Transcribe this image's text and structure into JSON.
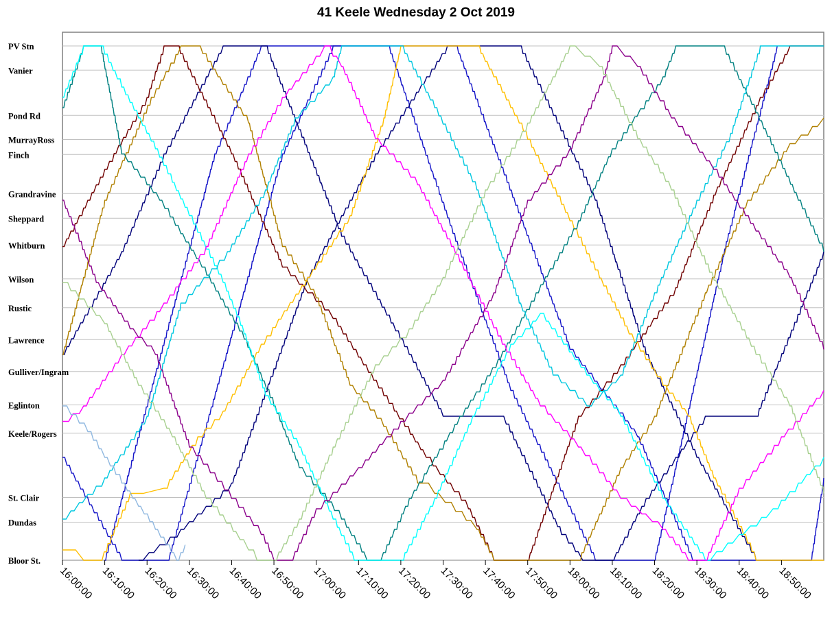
{
  "chart_data": {
    "type": "line",
    "title": "41 Keele Wednesday 2 Oct 2019",
    "x_ticks": [
      "16:00:00",
      "16:10:00",
      "16:20:00",
      "16:30:00",
      "16:40:00",
      "16:50:00",
      "17:00:00",
      "17:10:00",
      "17:20:00",
      "17:30:00",
      "17:40:00",
      "17:50:00",
      "18:00:00",
      "18:10:00",
      "18:20:00",
      "18:30:00",
      "18:40:00",
      "18:50:00"
    ],
    "xlim": [
      "16:00:00",
      "19:00:00"
    ],
    "stops": [
      {
        "name": "PV Stn",
        "pos": 1.0
      },
      {
        "name": "Vanier",
        "pos": 0.953
      },
      {
        "name": "Pond Rd",
        "pos": 0.865
      },
      {
        "name": "MurrayRoss",
        "pos": 0.818
      },
      {
        "name": "Finch",
        "pos": 0.789
      },
      {
        "name": "Grandravine",
        "pos": 0.713
      },
      {
        "name": "Sheppard",
        "pos": 0.665
      },
      {
        "name": "Whitburn",
        "pos": 0.613
      },
      {
        "name": "Wilson",
        "pos": 0.547
      },
      {
        "name": "Rustic",
        "pos": 0.491
      },
      {
        "name": "Lawrence",
        "pos": 0.429
      },
      {
        "name": "Gulliver/Ingram",
        "pos": 0.367
      },
      {
        "name": "Eglinton",
        "pos": 0.302
      },
      {
        "name": "Keele/Rogers",
        "pos": 0.247
      },
      {
        "name": "St. Clair",
        "pos": 0.122
      },
      {
        "name": "Dundas",
        "pos": 0.074
      },
      {
        "name": "Bloor St.",
        "pos": 0.0
      }
    ],
    "grid": true,
    "legend": "none",
    "series": [
      {
        "color": "#1414C8",
        "points": [
          [
            "16:00",
            0.2
          ],
          [
            "16:14",
            0.0
          ],
          [
            "16:25",
            0.0
          ],
          [
            "16:52",
            0.79
          ],
          [
            "17:04",
            1.0
          ],
          [
            "17:33",
            1.0
          ],
          [
            "18:00",
            0.41
          ],
          [
            "18:16",
            0.24
          ],
          [
            "18:29",
            0.0
          ],
          [
            "18:57",
            0.0
          ],
          [
            "19:00",
            0.16
          ]
        ]
      },
      {
        "color": "#1414C8",
        "points": [
          [
            "16:10",
            0.0
          ],
          [
            "16:36",
            0.79
          ],
          [
            "16:47",
            1.0
          ],
          [
            "17:17",
            1.0
          ],
          [
            "17:33",
            0.62
          ],
          [
            "17:46",
            0.33
          ],
          [
            "18:06",
            0.0
          ],
          [
            "18:20",
            0.0
          ],
          [
            "18:37",
            0.62
          ],
          [
            "18:49",
            1.0
          ]
        ]
      },
      {
        "color": "#00007A",
        "points": [
          [
            "16:00",
            0.4
          ],
          [
            "16:14",
            0.6
          ],
          [
            "16:24",
            0.79
          ],
          [
            "16:38",
            1.0
          ],
          [
            "16:48",
            1.0
          ],
          [
            "17:06",
            0.63
          ],
          [
            "17:22",
            0.4
          ],
          [
            "17:30",
            0.28
          ],
          [
            "17:44",
            0.28
          ],
          [
            "17:58",
            0.05
          ],
          [
            "18:03",
            0.0
          ],
          [
            "18:10",
            0.0
          ],
          [
            "18:18",
            0.12
          ],
          [
            "18:32",
            0.28
          ],
          [
            "18:44",
            0.28
          ],
          [
            "19:00",
            0.6
          ]
        ]
      },
      {
        "color": "#00007A",
        "points": [
          [
            "16:18",
            0.0
          ],
          [
            "16:28",
            0.06
          ],
          [
            "16:40",
            0.15
          ],
          [
            "16:58",
            0.55
          ],
          [
            "17:14",
            0.79
          ],
          [
            "17:31",
            1.0
          ],
          [
            "17:48",
            1.0
          ],
          [
            "18:06",
            0.7
          ],
          [
            "18:18",
            0.4
          ],
          [
            "18:30",
            0.2
          ],
          [
            "18:44",
            0.0
          ]
        ]
      },
      {
        "color": "#700000",
        "points": [
          [
            "16:00",
            0.61
          ],
          [
            "16:10",
            0.76
          ],
          [
            "16:20",
            0.9
          ],
          [
            "16:24",
            1.0
          ],
          [
            "16:27",
            1.0
          ],
          [
            "16:40",
            0.79
          ],
          [
            "16:52",
            0.57
          ],
          [
            "17:04",
            0.47
          ],
          [
            "17:16",
            0.32
          ],
          [
            "17:26",
            0.2
          ],
          [
            "17:36",
            0.1
          ],
          [
            "17:42",
            0.0
          ],
          [
            "17:50",
            0.0
          ],
          [
            "18:02",
            0.28
          ],
          [
            "18:12",
            0.38
          ],
          [
            "18:25",
            0.53
          ],
          [
            "18:34",
            0.71
          ],
          [
            "18:45",
            0.9
          ],
          [
            "18:52",
            1.0
          ],
          [
            "19:00",
            1.0
          ]
        ]
      },
      {
        "color": "#B08000",
        "points": [
          [
            "16:00",
            0.4
          ],
          [
            "16:10",
            0.7
          ],
          [
            "16:21",
            0.9
          ],
          [
            "16:28",
            1.0
          ],
          [
            "16:32",
            1.0
          ],
          [
            "16:44",
            0.85
          ],
          [
            "16:52",
            0.61
          ],
          [
            "17:00",
            0.51
          ],
          [
            "17:08",
            0.34
          ],
          [
            "17:16",
            0.26
          ],
          [
            "17:24",
            0.15
          ],
          [
            "17:28",
            0.13
          ],
          [
            "17:38",
            0.06
          ],
          [
            "17:42",
            0.0
          ],
          [
            "18:02",
            0.0
          ],
          [
            "18:12",
            0.18
          ],
          [
            "18:20",
            0.28
          ],
          [
            "18:32",
            0.52
          ],
          [
            "18:42",
            0.7
          ],
          [
            "18:52",
            0.81
          ],
          [
            "19:00",
            0.86
          ]
        ]
      },
      {
        "color": "#FFBF00",
        "points": [
          [
            "16:00",
            0.02
          ],
          [
            "16:05",
            0.0
          ],
          [
            "16:09",
            0.0
          ],
          [
            "16:16",
            0.13
          ],
          [
            "16:24",
            0.14
          ],
          [
            "16:32",
            0.24
          ],
          [
            "16:38",
            0.29
          ],
          [
            "16:47",
            0.42
          ],
          [
            "16:58",
            0.55
          ],
          [
            "17:08",
            0.67
          ],
          [
            "17:16",
            0.86
          ],
          [
            "17:20",
            1.0
          ],
          [
            "17:38",
            1.0
          ],
          [
            "17:48",
            0.85
          ],
          [
            "17:55",
            0.74
          ],
          [
            "18:05",
            0.58
          ],
          [
            "18:14",
            0.44
          ],
          [
            "18:22",
            0.34
          ],
          [
            "18:28",
            0.28
          ],
          [
            "18:34",
            0.16
          ],
          [
            "18:41",
            0.05
          ],
          [
            "18:44",
            0.0
          ],
          [
            "19:00",
            0.0
          ]
        ]
      },
      {
        "color": "#008080",
        "points": [
          [
            "16:00",
            0.88
          ],
          [
            "16:05",
            1.0
          ],
          [
            "16:09",
            1.0
          ],
          [
            "16:14",
            0.79
          ],
          [
            "16:23",
            0.7
          ],
          [
            "16:33",
            0.57
          ],
          [
            "16:43",
            0.43
          ],
          [
            "16:50",
            0.3
          ],
          [
            "16:56",
            0.18
          ],
          [
            "17:06",
            0.08
          ],
          [
            "17:12",
            0.0
          ],
          [
            "17:15",
            0.0
          ],
          [
            "17:22",
            0.12
          ],
          [
            "17:34",
            0.28
          ],
          [
            "17:43",
            0.39
          ],
          [
            "17:52",
            0.52
          ],
          [
            "18:02",
            0.66
          ],
          [
            "18:10",
            0.8
          ],
          [
            "18:22",
            0.94
          ],
          [
            "18:25",
            1.0
          ],
          [
            "18:36",
            1.0
          ],
          [
            "18:44",
            0.87
          ],
          [
            "18:54",
            0.7
          ],
          [
            "19:00",
            0.6
          ]
        ]
      },
      {
        "color": "#00FFFF",
        "points": [
          [
            "16:00",
            0.9
          ],
          [
            "16:05",
            1.0
          ],
          [
            "16:09",
            1.0
          ],
          [
            "16:14",
            0.92
          ],
          [
            "16:22",
            0.8
          ],
          [
            "16:30",
            0.67
          ],
          [
            "16:38",
            0.54
          ],
          [
            "16:43",
            0.44
          ],
          [
            "16:48",
            0.32
          ],
          [
            "16:56",
            0.22
          ],
          [
            "17:04",
            0.08
          ],
          [
            "17:09",
            0.0
          ],
          [
            "17:20",
            0.0
          ],
          [
            "17:28",
            0.12
          ],
          [
            "17:37",
            0.28
          ],
          [
            "17:46",
            0.42
          ],
          [
            "17:53",
            0.48
          ],
          [
            "18:04",
            0.36
          ],
          [
            "18:12",
            0.28
          ],
          [
            "18:22",
            0.12
          ],
          [
            "18:32",
            0.0
          ],
          [
            "18:48",
            0.1
          ],
          [
            "19:00",
            0.2
          ]
        ]
      },
      {
        "color": "#00C8E0",
        "points": [
          [
            "16:00",
            0.08
          ],
          [
            "16:10",
            0.16
          ],
          [
            "16:20",
            0.28
          ],
          [
            "16:28",
            0.5
          ],
          [
            "16:39",
            0.6
          ],
          [
            "16:48",
            0.72
          ],
          [
            "16:55",
            0.86
          ],
          [
            "17:04",
            0.94
          ],
          [
            "17:06",
            1.0
          ],
          [
            "17:20",
            1.0
          ],
          [
            "17:28",
            0.88
          ],
          [
            "17:38",
            0.72
          ],
          [
            "17:48",
            0.5
          ],
          [
            "17:56",
            0.36
          ],
          [
            "18:04",
            0.3
          ],
          [
            "18:12",
            0.36
          ],
          [
            "18:20",
            0.52
          ],
          [
            "18:30",
            0.7
          ],
          [
            "18:38",
            0.83
          ],
          [
            "18:45",
            1.0
          ],
          [
            "19:00",
            1.0
          ]
        ]
      },
      {
        "color": "#FF00FF",
        "points": [
          [
            "16:00",
            0.27
          ],
          [
            "16:05",
            0.3
          ],
          [
            "16:14",
            0.4
          ],
          [
            "16:24",
            0.5
          ],
          [
            "16:34",
            0.61
          ],
          [
            "16:44",
            0.79
          ],
          [
            "16:52",
            0.9
          ],
          [
            "17:00",
            0.98
          ],
          [
            "17:02",
            1.0
          ],
          [
            "17:06",
            0.96
          ],
          [
            "17:14",
            0.82
          ],
          [
            "17:24",
            0.73
          ],
          [
            "17:34",
            0.58
          ],
          [
            "17:44",
            0.42
          ],
          [
            "17:53",
            0.3
          ],
          [
            "18:02",
            0.22
          ],
          [
            "18:12",
            0.12
          ],
          [
            "18:22",
            0.06
          ],
          [
            "18:28",
            0.0
          ],
          [
            "18:32",
            0.0
          ],
          [
            "18:40",
            0.14
          ],
          [
            "18:50",
            0.24
          ],
          [
            "19:00",
            0.33
          ]
        ]
      },
      {
        "color": "#8B008B",
        "points": [
          [
            "16:00",
            0.7
          ],
          [
            "16:08",
            0.54
          ],
          [
            "16:16",
            0.45
          ],
          [
            "16:22",
            0.4
          ],
          [
            "16:30",
            0.22
          ],
          [
            "16:40",
            0.12
          ],
          [
            "16:47",
            0.05
          ],
          [
            "16:50",
            0.0
          ],
          [
            "16:54",
            0.0
          ],
          [
            "17:00",
            0.1
          ],
          [
            "17:10",
            0.18
          ],
          [
            "17:20",
            0.27
          ],
          [
            "17:30",
            0.35
          ],
          [
            "17:42",
            0.52
          ],
          [
            "17:50",
            0.7
          ],
          [
            "18:00",
            0.8
          ],
          [
            "18:08",
            0.94
          ],
          [
            "18:10",
            1.0
          ],
          [
            "18:16",
            0.96
          ],
          [
            "18:24",
            0.86
          ],
          [
            "18:34",
            0.76
          ],
          [
            "18:44",
            0.64
          ],
          [
            "18:52",
            0.55
          ],
          [
            "19:00",
            0.41
          ]
        ]
      },
      {
        "color": "#A8D090",
        "points": [
          [
            "16:00",
            0.54
          ],
          [
            "16:10",
            0.46
          ],
          [
            "16:18",
            0.34
          ],
          [
            "16:26",
            0.24
          ],
          [
            "16:34",
            0.12
          ],
          [
            "16:42",
            0.04
          ],
          [
            "16:46",
            0.0
          ],
          [
            "16:50",
            0.0
          ],
          [
            "16:56",
            0.08
          ],
          [
            "17:04",
            0.22
          ],
          [
            "17:14",
            0.38
          ],
          [
            "17:22",
            0.45
          ],
          [
            "17:30",
            0.55
          ],
          [
            "17:40",
            0.72
          ],
          [
            "17:50",
            0.85
          ],
          [
            "18:00",
            1.0
          ],
          [
            "18:07",
            0.96
          ],
          [
            "18:16",
            0.82
          ],
          [
            "18:24",
            0.72
          ],
          [
            "18:33",
            0.56
          ],
          [
            "18:44",
            0.4
          ],
          [
            "18:52",
            0.3
          ],
          [
            "19:00",
            0.13
          ]
        ]
      },
      {
        "color": "#90B8E0",
        "points": [
          [
            "16:00",
            0.3
          ],
          [
            "16:06",
            0.25
          ],
          [
            "16:14",
            0.15
          ],
          [
            "16:22",
            0.06
          ],
          [
            "16:27",
            0.0
          ],
          [
            "16:29",
            0.03
          ]
        ]
      }
    ]
  }
}
